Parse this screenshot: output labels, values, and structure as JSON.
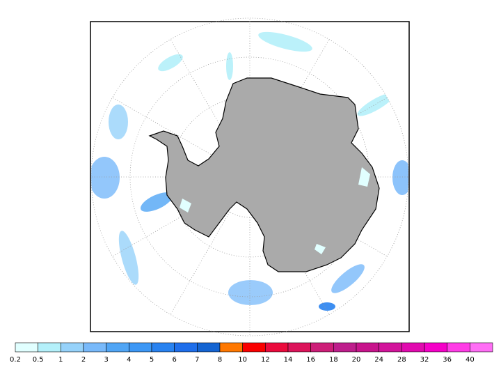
{
  "colorbar": {
    "labels": [
      0.2,
      0.5,
      1,
      2,
      3,
      4,
      5,
      6,
      7,
      8,
      10,
      12,
      14,
      16,
      18,
      20,
      24,
      28,
      32,
      36,
      40
    ],
    "colors": [
      "#e1ffff",
      "#b4f0fa",
      "#96d2fa",
      "#78b9fa",
      "#50a5f5",
      "#3c97f5",
      "#2882f0",
      "#1e6eeb",
      "#1464d2",
      "#ff7800",
      "#fa0000",
      "#eb0a3c",
      "#dc145a",
      "#cd1e78",
      "#be1e8c",
      "#c8148c",
      "#d2149b",
      "#e10aaf",
      "#f500c8",
      "#ff3ce6",
      "#ff6ef5"
    ]
  }
}
